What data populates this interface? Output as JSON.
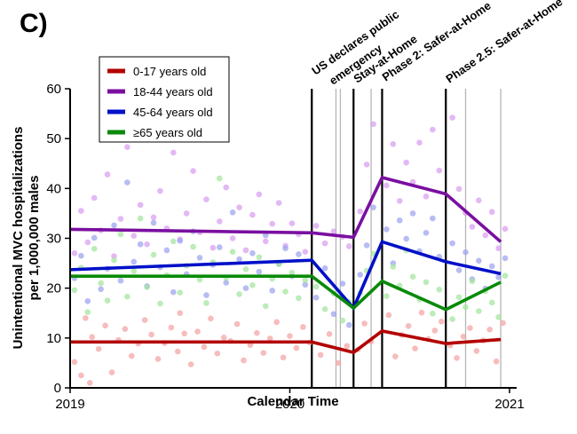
{
  "panel_label": "C)",
  "chart_data": {
    "type": "line",
    "xlabel": "Calendar Time",
    "ylabel_lines": [
      "Unintentional MVC hospitalizations",
      "per 1,000,000 males"
    ],
    "xlim": [
      2019.0,
      2021.0
    ],
    "ylim": [
      0,
      60
    ],
    "x_ticks": [
      2019,
      2020,
      2021
    ],
    "x_tick_labels": [
      "2019",
      "2020",
      "2021"
    ],
    "y_ticks": [
      0,
      10,
      20,
      30,
      40,
      50,
      60
    ],
    "y_tick_labels": [
      "0",
      "10",
      "20",
      "30",
      "40",
      "50",
      "60"
    ],
    "legend_position": "top-left",
    "series": [
      {
        "name": "0-17 years old",
        "color": "#b30000",
        "point_color": "#f4a6a6",
        "line": [
          [
            2019.0,
            9.2
          ],
          [
            2020.1,
            9.2
          ],
          [
            2020.29,
            7.1
          ],
          [
            2020.42,
            11.4
          ],
          [
            2020.71,
            8.9
          ],
          [
            2020.96,
            9.7
          ]
        ],
        "points": [
          [
            2019.02,
            5.2
          ],
          [
            2019.05,
            2.5
          ],
          [
            2019.07,
            14.0
          ],
          [
            2019.1,
            10.2
          ],
          [
            2019.13,
            7.8
          ],
          [
            2019.16,
            12.5
          ],
          [
            2019.19,
            3.1
          ],
          [
            2019.22,
            9.6
          ],
          [
            2019.25,
            11.8
          ],
          [
            2019.28,
            6.4
          ],
          [
            2019.31,
            8.9
          ],
          [
            2019.34,
            13.6
          ],
          [
            2019.37,
            10.7
          ],
          [
            2019.4,
            5.8
          ],
          [
            2019.43,
            9.0
          ],
          [
            2019.46,
            12.1
          ],
          [
            2019.49,
            7.3
          ],
          [
            2019.52,
            10.9
          ],
          [
            2019.55,
            4.7
          ],
          [
            2019.58,
            11.3
          ],
          [
            2019.61,
            8.2
          ],
          [
            2019.64,
            13.9
          ],
          [
            2019.67,
            6.9
          ],
          [
            2019.7,
            10.1
          ],
          [
            2019.73,
            9.4
          ],
          [
            2019.76,
            12.8
          ],
          [
            2019.79,
            5.5
          ],
          [
            2019.82,
            8.6
          ],
          [
            2019.85,
            11.0
          ],
          [
            2019.88,
            7.0
          ],
          [
            2019.91,
            9.9
          ],
          [
            2019.94,
            13.2
          ],
          [
            2019.97,
            6.1
          ],
          [
            2020.0,
            10.4
          ],
          [
            2020.03,
            8.0
          ],
          [
            2020.06,
            12.2
          ],
          [
            2020.09,
            9.1
          ],
          [
            2020.14,
            6.6
          ],
          [
            2020.18,
            10.8
          ],
          [
            2020.22,
            5.0
          ],
          [
            2020.26,
            8.4
          ],
          [
            2020.31,
            7.7
          ],
          [
            2020.34,
            12.9
          ],
          [
            2020.37,
            9.3
          ],
          [
            2020.45,
            14.6
          ],
          [
            2020.48,
            6.3
          ],
          [
            2020.51,
            10.6
          ],
          [
            2020.54,
            12.4
          ],
          [
            2020.57,
            7.9
          ],
          [
            2020.6,
            15.1
          ],
          [
            2020.63,
            9.8
          ],
          [
            2020.66,
            11.5
          ],
          [
            2020.69,
            13.3
          ],
          [
            2020.73,
            8.5
          ],
          [
            2020.76,
            6.0
          ],
          [
            2020.79,
            10.3
          ],
          [
            2020.82,
            12.0
          ],
          [
            2020.85,
            7.4
          ],
          [
            2020.88,
            9.5
          ],
          [
            2020.91,
            11.7
          ],
          [
            2020.94,
            5.3
          ],
          [
            2020.97,
            13.0
          ],
          [
            2019.09,
            1.0
          ],
          [
            2019.5,
            15.0
          ]
        ]
      },
      {
        "name": "18-44 years old",
        "color": "#7a0fa0",
        "point_color": "#d9a0f2",
        "line": [
          [
            2019.0,
            31.8
          ],
          [
            2020.1,
            31.1
          ],
          [
            2020.29,
            30.2
          ],
          [
            2020.42,
            42.2
          ],
          [
            2020.71,
            38.9
          ],
          [
            2020.96,
            29.3
          ]
        ],
        "points": [
          [
            2019.02,
            27.0
          ],
          [
            2019.05,
            35.5
          ],
          [
            2019.08,
            29.2
          ],
          [
            2019.11,
            38.1
          ],
          [
            2019.14,
            31.6
          ],
          [
            2019.17,
            42.8
          ],
          [
            2019.2,
            26.4
          ],
          [
            2019.23,
            33.9
          ],
          [
            2019.26,
            48.3
          ],
          [
            2019.29,
            30.5
          ],
          [
            2019.32,
            36.7
          ],
          [
            2019.35,
            28.8
          ],
          [
            2019.38,
            34.2
          ],
          [
            2019.41,
            39.5
          ],
          [
            2019.44,
            32.0
          ],
          [
            2019.47,
            47.2
          ],
          [
            2019.5,
            29.8
          ],
          [
            2019.53,
            35.0
          ],
          [
            2019.56,
            43.5
          ],
          [
            2019.59,
            31.2
          ],
          [
            2019.62,
            37.8
          ],
          [
            2019.65,
            28.1
          ],
          [
            2019.68,
            33.4
          ],
          [
            2019.71,
            40.2
          ],
          [
            2019.74,
            30.0
          ],
          [
            2019.77,
            36.2
          ],
          [
            2019.8,
            27.6
          ],
          [
            2019.83,
            34.7
          ],
          [
            2019.86,
            38.8
          ],
          [
            2019.89,
            29.4
          ],
          [
            2019.92,
            32.9
          ],
          [
            2019.95,
            37.1
          ],
          [
            2019.98,
            28.5
          ],
          [
            2020.01,
            33.0
          ],
          [
            2020.04,
            30.8
          ],
          [
            2020.07,
            27.3
          ],
          [
            2020.12,
            32.5
          ],
          [
            2020.16,
            29.0
          ],
          [
            2020.2,
            31.4
          ],
          [
            2020.24,
            30.3
          ],
          [
            2020.27,
            28.4
          ],
          [
            2020.32,
            35.4
          ],
          [
            2020.35,
            44.8
          ],
          [
            2020.38,
            52.9
          ],
          [
            2020.44,
            40.6
          ],
          [
            2020.47,
            48.9
          ],
          [
            2020.5,
            37.5
          ],
          [
            2020.53,
            45.2
          ],
          [
            2020.56,
            41.3
          ],
          [
            2020.59,
            49.2
          ],
          [
            2020.62,
            38.4
          ],
          [
            2020.65,
            51.8
          ],
          [
            2020.68,
            43.6
          ],
          [
            2020.74,
            54.2
          ],
          [
            2020.77,
            39.9
          ],
          [
            2020.8,
            35.1
          ],
          [
            2020.83,
            32.3
          ],
          [
            2020.86,
            37.6
          ],
          [
            2020.89,
            30.6
          ],
          [
            2020.92,
            35.3
          ],
          [
            2020.95,
            28.0
          ],
          [
            2020.98,
            31.9
          ]
        ]
      },
      {
        "name": "45-64 years old",
        "color": "#0010c8",
        "point_color": "#9fa6ef",
        "line": [
          [
            2019.0,
            23.7
          ],
          [
            2020.1,
            25.6
          ],
          [
            2020.29,
            16.0
          ],
          [
            2020.42,
            29.3
          ],
          [
            2020.71,
            25.3
          ],
          [
            2020.96,
            22.9
          ]
        ],
        "points": [
          [
            2019.02,
            22.0
          ],
          [
            2019.05,
            26.5
          ],
          [
            2019.08,
            17.4
          ],
          [
            2019.11,
            30.1
          ],
          [
            2019.14,
            19.8
          ],
          [
            2019.17,
            23.9
          ],
          [
            2019.2,
            32.6
          ],
          [
            2019.23,
            21.5
          ],
          [
            2019.26,
            41.2
          ],
          [
            2019.29,
            25.3
          ],
          [
            2019.32,
            28.8
          ],
          [
            2019.35,
            20.4
          ],
          [
            2019.38,
            33.1
          ],
          [
            2019.41,
            24.2
          ],
          [
            2019.44,
            27.6
          ],
          [
            2019.47,
            19.2
          ],
          [
            2019.5,
            29.5
          ],
          [
            2019.53,
            22.8
          ],
          [
            2019.56,
            31.4
          ],
          [
            2019.59,
            26.1
          ],
          [
            2019.62,
            18.6
          ],
          [
            2019.65,
            24.7
          ],
          [
            2019.68,
            28.2
          ],
          [
            2019.71,
            21.1
          ],
          [
            2019.74,
            35.2
          ],
          [
            2019.77,
            25.8
          ],
          [
            2019.8,
            20.0
          ],
          [
            2019.83,
            27.0
          ],
          [
            2019.86,
            23.3
          ],
          [
            2019.89,
            30.6
          ],
          [
            2019.92,
            19.5
          ],
          [
            2019.95,
            24.9
          ],
          [
            2019.98,
            28.0
          ],
          [
            2020.01,
            22.4
          ],
          [
            2020.04,
            26.8
          ],
          [
            2020.07,
            20.7
          ],
          [
            2020.12,
            18.1
          ],
          [
            2020.16,
            24.0
          ],
          [
            2020.2,
            14.8
          ],
          [
            2020.24,
            20.9
          ],
          [
            2020.27,
            12.6
          ],
          [
            2020.32,
            22.7
          ],
          [
            2020.35,
            28.6
          ],
          [
            2020.38,
            36.2
          ],
          [
            2020.44,
            31.8
          ],
          [
            2020.47,
            25.0
          ],
          [
            2020.5,
            33.6
          ],
          [
            2020.53,
            29.9
          ],
          [
            2020.56,
            35.0
          ],
          [
            2020.59,
            27.4
          ],
          [
            2020.62,
            31.1
          ],
          [
            2020.65,
            34.0
          ],
          [
            2020.68,
            26.3
          ],
          [
            2020.74,
            29.0
          ],
          [
            2020.77,
            23.6
          ],
          [
            2020.8,
            27.2
          ],
          [
            2020.83,
            21.8
          ],
          [
            2020.86,
            25.5
          ],
          [
            2020.89,
            19.9
          ],
          [
            2020.92,
            24.4
          ],
          [
            2020.95,
            22.2
          ],
          [
            2020.98,
            26.0
          ]
        ]
      },
      {
        "name": "≥65 years old",
        "color": "#0a8a0a",
        "point_color": "#a6e6a0",
        "line": [
          [
            2019.0,
            22.4
          ],
          [
            2020.1,
            22.4
          ],
          [
            2020.29,
            16.0
          ],
          [
            2020.42,
            21.4
          ],
          [
            2020.71,
            15.7
          ],
          [
            2020.96,
            21.2
          ]
        ],
        "points": [
          [
            2019.02,
            19.6
          ],
          [
            2019.05,
            24.1
          ],
          [
            2019.08,
            15.2
          ],
          [
            2019.11,
            27.9
          ],
          [
            2019.14,
            21.0
          ],
          [
            2019.17,
            17.5
          ],
          [
            2019.2,
            25.6
          ],
          [
            2019.23,
            30.8
          ],
          [
            2019.26,
            18.3
          ],
          [
            2019.29,
            23.4
          ],
          [
            2019.32,
            34.0
          ],
          [
            2019.35,
            20.2
          ],
          [
            2019.38,
            26.7
          ],
          [
            2019.41,
            16.9
          ],
          [
            2019.44,
            22.6
          ],
          [
            2019.47,
            29.4
          ],
          [
            2019.5,
            19.1
          ],
          [
            2019.53,
            24.5
          ],
          [
            2019.56,
            28.3
          ],
          [
            2019.59,
            21.7
          ],
          [
            2019.62,
            17.0
          ],
          [
            2019.65,
            25.2
          ],
          [
            2019.68,
            42.0
          ],
          [
            2019.71,
            22.1
          ],
          [
            2019.74,
            27.3
          ],
          [
            2019.77,
            18.8
          ],
          [
            2019.8,
            23.8
          ],
          [
            2019.83,
            20.6
          ],
          [
            2019.86,
            26.2
          ],
          [
            2019.89,
            16.4
          ],
          [
            2019.92,
            21.9
          ],
          [
            2019.95,
            24.8
          ],
          [
            2019.98,
            19.3
          ],
          [
            2020.01,
            23.1
          ],
          [
            2020.04,
            18.0
          ],
          [
            2020.07,
            21.6
          ],
          [
            2020.12,
            20.3
          ],
          [
            2020.16,
            15.8
          ],
          [
            2020.2,
            18.9
          ],
          [
            2020.24,
            13.5
          ],
          [
            2020.27,
            17.2
          ],
          [
            2020.32,
            19.0
          ],
          [
            2020.35,
            23.5
          ],
          [
            2020.38,
            26.9
          ],
          [
            2020.44,
            18.4
          ],
          [
            2020.47,
            24.3
          ],
          [
            2020.5,
            20.5
          ],
          [
            2020.53,
            27.6
          ],
          [
            2020.56,
            22.3
          ],
          [
            2020.59,
            17.7
          ],
          [
            2020.62,
            21.2
          ],
          [
            2020.65,
            14.9
          ],
          [
            2020.68,
            19.7
          ],
          [
            2020.74,
            13.8
          ],
          [
            2020.77,
            18.2
          ],
          [
            2020.8,
            16.2
          ],
          [
            2020.83,
            21.4
          ],
          [
            2020.86,
            15.4
          ],
          [
            2020.89,
            19.4
          ],
          [
            2020.92,
            17.1
          ],
          [
            2020.95,
            14.2
          ],
          [
            2020.98,
            22.5
          ]
        ]
      }
    ],
    "event_lines_major": [
      2020.1,
      2020.29,
      2020.42,
      2020.71
    ],
    "event_lines_minor": [
      2020.21,
      2020.23,
      2020.37,
      2020.8,
      2020.96
    ],
    "annotations": [
      {
        "text": "US declares public",
        "x": 2020.1
      },
      {
        "text": "emergency",
        "x": 2020.18
      },
      {
        "text": "Stay-at-Home",
        "x": 2020.29
      },
      {
        "text": "Phase 2: Safer-at-Home",
        "x": 2020.42
      },
      {
        "text": "Phase 2.5: Safer-at-Home",
        "x": 2020.71
      }
    ]
  }
}
